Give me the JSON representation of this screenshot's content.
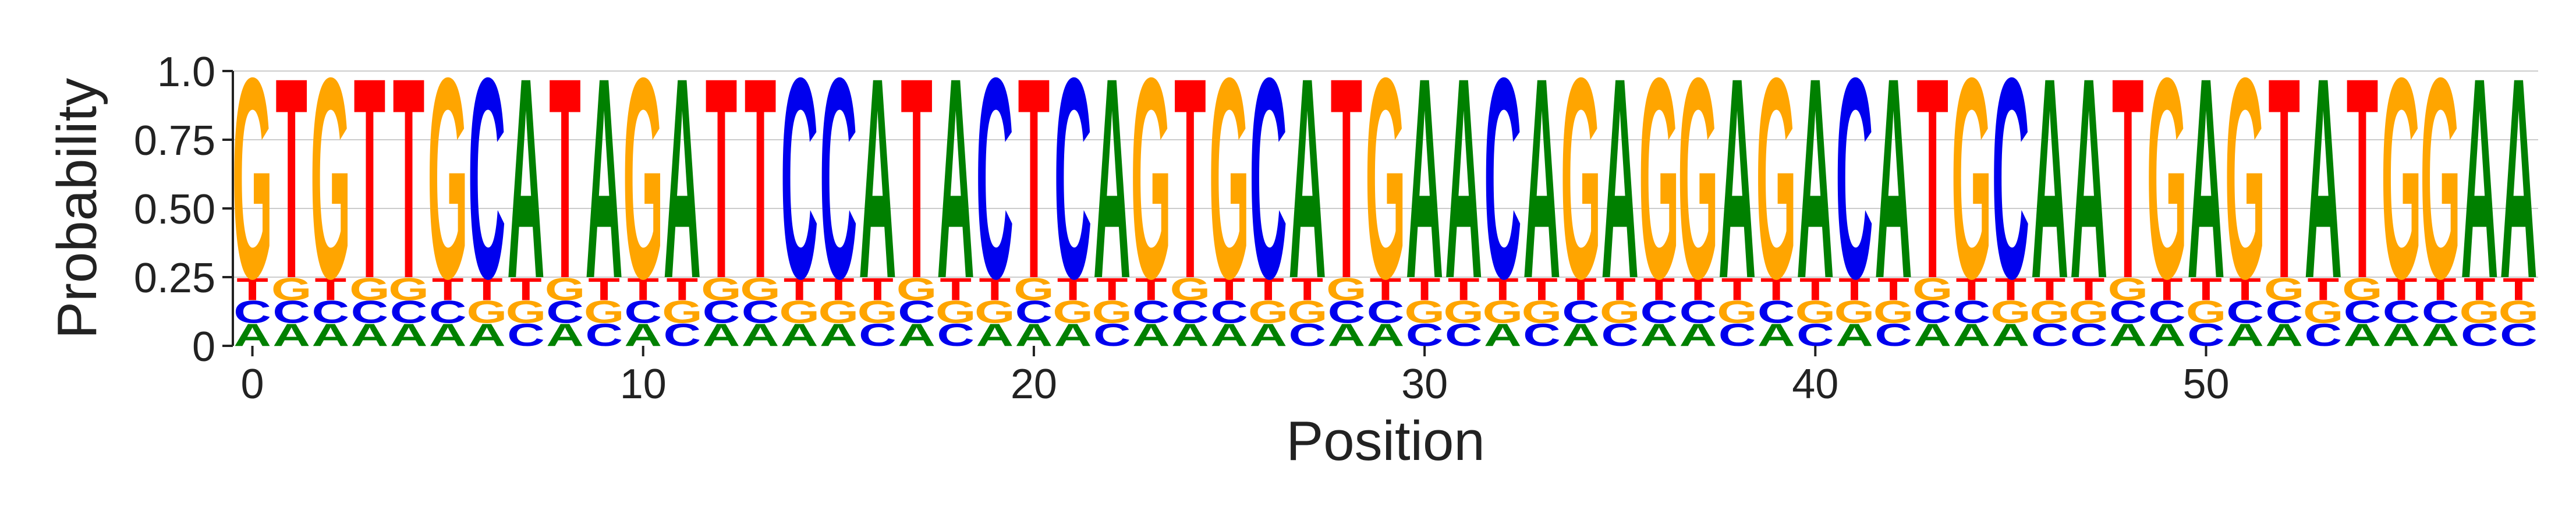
{
  "chart_data": {
    "type": "sequence-logo",
    "xlabel": "Position",
    "ylabel": "Probability",
    "ylim": [
      0,
      1
    ],
    "y_ticks": [
      0,
      0.25,
      0.5,
      0.75,
      1.0
    ],
    "y_tick_labels": [
      "0",
      "0.25",
      "0.50",
      "0.75",
      "1.0"
    ],
    "x_ticks": [
      0,
      10,
      20,
      30,
      40,
      50
    ],
    "x_tick_labels": [
      "0",
      "10",
      "20",
      "30",
      "40",
      "50"
    ],
    "xlim": [
      -0.5,
      58.5
    ],
    "grid": "horizontal",
    "alphabet": [
      "A",
      "C",
      "G",
      "T"
    ],
    "colors": {
      "A": "#008000",
      "C": "#0000ee",
      "G": "#ffa500",
      "T": "#ff0000"
    },
    "consensus": "GTGTTGCATAGATTCCATACTCAGTGCATGAACAGAGGAGACATGCAATGAGTATGGAA",
    "background_probability": 0.0833,
    "dominant_probability": 0.75,
    "positions": [
      0,
      1,
      2,
      3,
      4,
      5,
      6,
      7,
      8,
      9,
      10,
      11,
      12,
      13,
      14,
      15,
      16,
      17,
      18,
      19,
      20,
      21,
      22,
      23,
      24,
      25,
      26,
      27,
      28,
      29,
      30,
      31,
      32,
      33,
      34,
      35,
      36,
      37,
      38,
      39,
      40,
      41,
      42,
      43,
      44,
      45,
      46,
      47,
      48,
      49,
      50,
      51,
      52,
      53,
      54,
      55,
      56,
      57,
      58
    ]
  }
}
